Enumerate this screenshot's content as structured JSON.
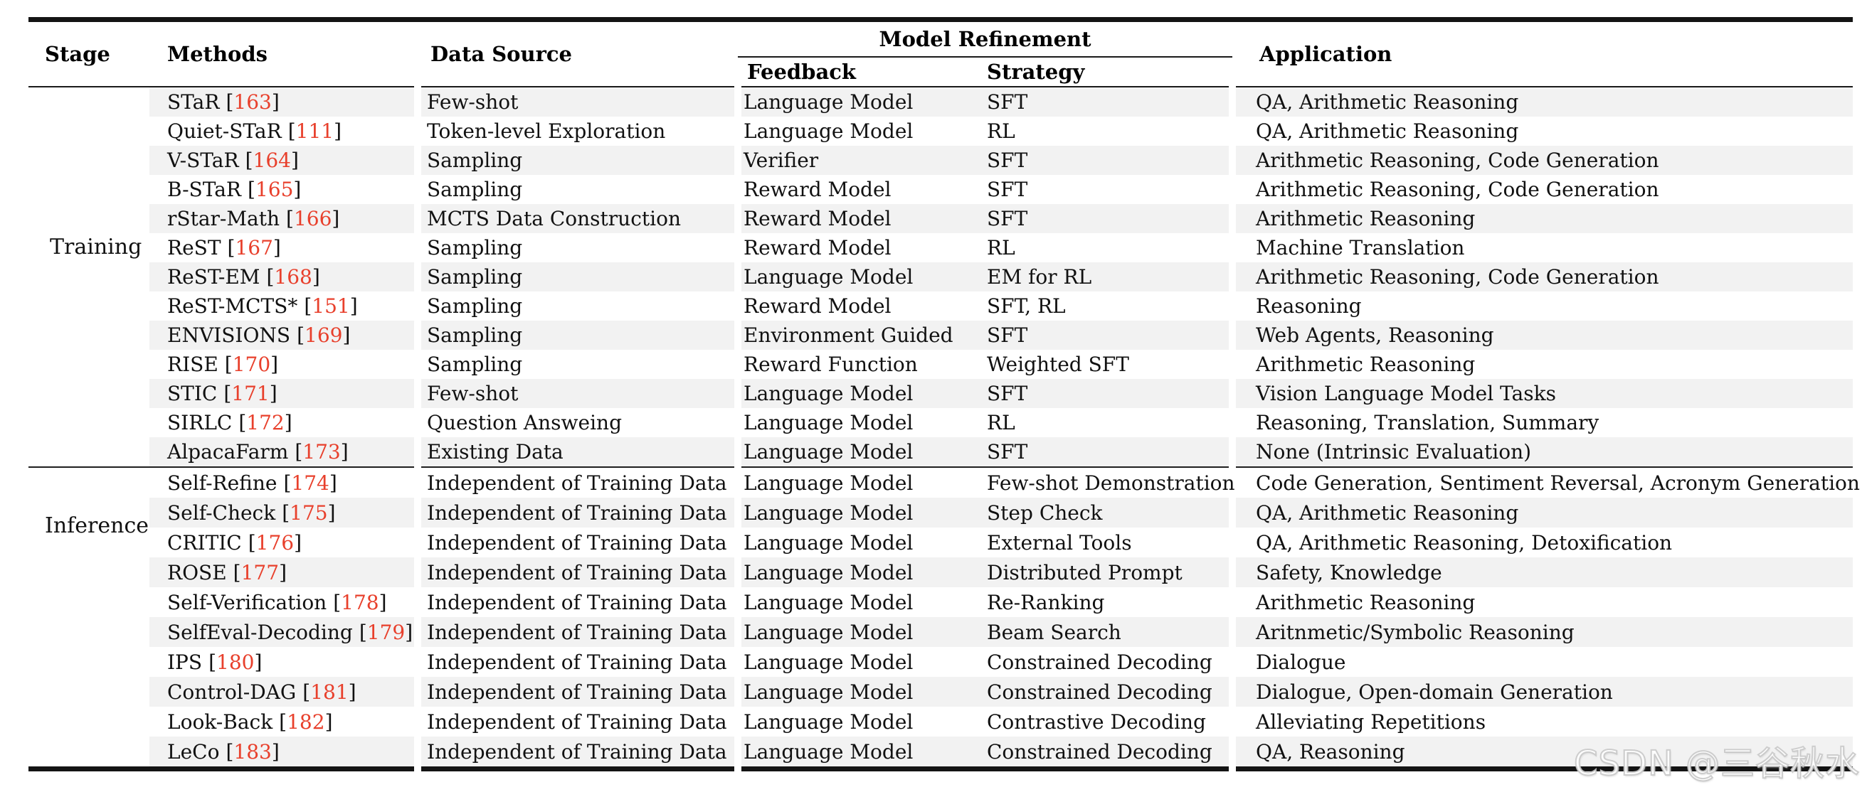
{
  "table": {
    "headers": {
      "stage": "Stage",
      "methods": "Methods",
      "data_source": "Data Source",
      "model_refinement": "Model Refinement",
      "feedback": "Feedback",
      "strategy": "Strategy",
      "application": "Application"
    },
    "sections": [
      {
        "stage": "Training",
        "rows": [
          {
            "method": "STaR",
            "ref": "163",
            "data_source": "Few-shot",
            "feedback": "Language Model",
            "strategy": "SFT",
            "application": "QA, Arithmetic Reasoning"
          },
          {
            "method": "Quiet-STaR",
            "ref": "111",
            "data_source": "Token-level Exploration",
            "feedback": "Language Model",
            "strategy": "RL",
            "application": "QA, Arithmetic Reasoning"
          },
          {
            "method": "V-STaR",
            "ref": "164",
            "data_source": "Sampling",
            "feedback": "Verifier",
            "strategy": "SFT",
            "application": "Arithmetic Reasoning, Code Generation"
          },
          {
            "method": "B-STaR",
            "ref": "165",
            "data_source": "Sampling",
            "feedback": "Reward Model",
            "strategy": "SFT",
            "application": "Arithmetic Reasoning, Code Generation"
          },
          {
            "method": "rStar-Math",
            "ref": "166",
            "data_source": "MCTS Data Construction",
            "feedback": "Reward Model",
            "strategy": "SFT",
            "application": "Arithmetic Reasoning"
          },
          {
            "method": "ReST",
            "ref": "167",
            "data_source": "Sampling",
            "feedback": "Reward Model",
            "strategy": "RL",
            "application": "Machine Translation"
          },
          {
            "method": "ReST-EM",
            "ref": "168",
            "data_source": "Sampling",
            "feedback": "Language Model",
            "strategy": "EM for RL",
            "application": "Arithmetic Reasoning, Code Generation"
          },
          {
            "method": "ReST-MCTS*",
            "ref": "151",
            "data_source": "Sampling",
            "feedback": "Reward Model",
            "strategy": "SFT, RL",
            "application": "Reasoning"
          },
          {
            "method": "ENVISIONS",
            "ref": "169",
            "data_source": "Sampling",
            "feedback": "Environment Guided",
            "strategy": "SFT",
            "application": "Web Agents, Reasoning"
          },
          {
            "method": "RISE",
            "ref": "170",
            "data_source": "Sampling",
            "feedback": "Reward Function",
            "strategy": "Weighted SFT",
            "application": "Arithmetic Reasoning"
          },
          {
            "method": "STIC",
            "ref": "171",
            "data_source": "Few-shot",
            "feedback": "Language Model",
            "strategy": "SFT",
            "application": "Vision Language Model Tasks"
          },
          {
            "method": "SIRLC",
            "ref": "172",
            "data_source": "Question Answeing",
            "feedback": "Language Model",
            "strategy": "RL",
            "application": "Reasoning, Translation, Summary"
          },
          {
            "method": "AlpacaFarm",
            "ref": "173",
            "data_source": "Existing Data",
            "feedback": "Language Model",
            "strategy": "SFT",
            "application": "None (Intrinsic Evaluation)"
          }
        ]
      },
      {
        "stage": "Inference",
        "rows": [
          {
            "method": "Self-Refine",
            "ref": "174",
            "data_source": "Independent of Training Data",
            "feedback": "Language Model",
            "strategy": "Few-shot Demonstration",
            "application": "Code Generation, Sentiment Reversal, Acronym Generation"
          },
          {
            "method": "Self-Check",
            "ref": "175",
            "data_source": "Independent of Training Data",
            "feedback": "Language Model",
            "strategy": "Step Check",
            "application": "QA, Arithmetic Reasoning"
          },
          {
            "method": "CRITIC",
            "ref": "176",
            "data_source": "Independent of Training Data",
            "feedback": "Language Model",
            "strategy": "External Tools",
            "application": "QA, Arithmetic Reasoning, Detoxification"
          },
          {
            "method": "ROSE",
            "ref": "177",
            "data_source": "Independent of Training Data",
            "feedback": "Language Model",
            "strategy": "Distributed Prompt",
            "application": "Safety, Knowledge"
          },
          {
            "method": "Self-Verification",
            "ref": "178",
            "data_source": "Independent of Training Data",
            "feedback": "Language Model",
            "strategy": "Re-Ranking",
            "application": "Arithmetic Reasoning"
          },
          {
            "method": "SelfEval-Decoding",
            "ref": "179",
            "data_source": "Independent of Training Data",
            "feedback": "Language Model",
            "strategy": "Beam Search",
            "application": "Aritnmetic/Symbolic Reasoning"
          },
          {
            "method": "IPS",
            "ref": "180",
            "data_source": "Independent of Training Data",
            "feedback": "Language Model",
            "strategy": "Constrained Decoding",
            "application": "Dialogue"
          },
          {
            "method": "Control-DAG",
            "ref": "181",
            "data_source": "Independent of Training Data",
            "feedback": "Language Model",
            "strategy": "Constrained Decoding",
            "application": "Dialogue, Open-domain Generation"
          },
          {
            "method": "Look-Back",
            "ref": "182",
            "data_source": "Independent of Training Data",
            "feedback": "Language Model",
            "strategy": "Contrastive Decoding",
            "application": "Alleviating Repetitions"
          },
          {
            "method": "LeCo",
            "ref": "183",
            "data_source": "Independent of Training Data",
            "feedback": "Language Model",
            "strategy": "Constrained Decoding",
            "application": "QA, Reasoning"
          }
        ]
      }
    ]
  },
  "watermark": "CSDN @三谷秋水",
  "colors": {
    "citation_red": "#e8402c",
    "row_shade": "#f2f2f2",
    "rule_black": "#141414"
  }
}
